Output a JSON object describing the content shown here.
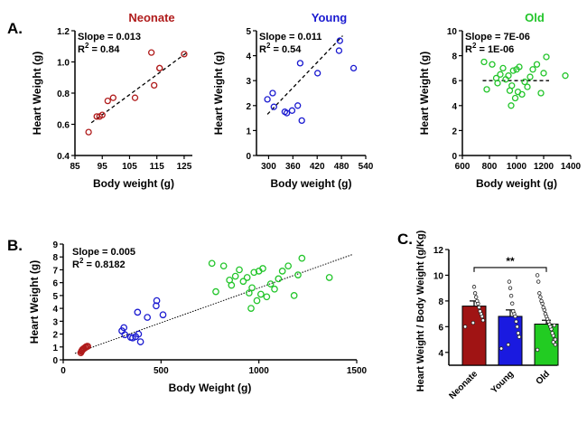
{
  "figure": {
    "panel_labels": [
      "A.",
      "B.",
      "C."
    ]
  },
  "chart_data": [
    {
      "id": "neonate",
      "type": "scatter",
      "title": "Neonate",
      "title_color": "#b01c1c",
      "xlabel": "Body weight (g)",
      "ylabel": "Heart Weight (g)",
      "xlim": [
        85,
        128
      ],
      "ylim": [
        0.4,
        1.2
      ],
      "xticks": [
        85,
        95,
        105,
        115,
        125
      ],
      "yticks": [
        0.4,
        0.6,
        0.8,
        1.0,
        1.2
      ],
      "ytick_decimals": 1,
      "point_color": "#b01c1c",
      "annotations": [
        "Slope = 0.013",
        "R",
        "2",
        " = 0.84"
      ],
      "fit": {
        "x": [
          91,
          126
        ],
        "y": [
          0.61,
          1.06
        ]
      },
      "x": [
        90,
        93,
        94,
        95,
        97,
        99,
        107,
        113,
        114,
        116,
        116,
        125
      ],
      "y": [
        0.55,
        0.65,
        0.65,
        0.66,
        0.75,
        0.77,
        0.77,
        1.06,
        0.85,
        0.96,
        0.96,
        1.05
      ]
    },
    {
      "id": "young",
      "type": "scatter",
      "title": "Young",
      "title_color": "#1a1ad0",
      "xlabel": "Body weight (g)",
      "ylabel": "Heart Weight (g)",
      "xlim": [
        270,
        540
      ],
      "ylim": [
        0,
        5
      ],
      "xticks": [
        300,
        360,
        420,
        480,
        540
      ],
      "yticks": [
        0,
        1,
        2,
        3,
        4,
        5
      ],
      "ytick_decimals": 0,
      "point_color": "#1a1ad0",
      "annotations": [
        "Slope = 0.011",
        "R",
        "2",
        " = 0.54"
      ],
      "fit": {
        "x": [
          297,
          483
        ],
        "y": [
          1.65,
          4.8
        ]
      },
      "x": [
        297,
        310,
        313,
        340,
        345,
        358,
        372,
        378,
        382,
        421,
        474,
        476,
        510
      ],
      "y": [
        2.25,
        2.5,
        1.95,
        1.75,
        1.7,
        1.8,
        2.0,
        3.7,
        1.4,
        3.3,
        4.2,
        4.6,
        3.5
      ]
    },
    {
      "id": "old",
      "type": "scatter",
      "title": "Old",
      "title_color": "#22c52a",
      "xlabel": "Body weight (g)",
      "ylabel": "Heart Weight (g)",
      "xlim": [
        600,
        1400
      ],
      "ylim": [
        0,
        10
      ],
      "xticks": [
        600,
        800,
        1000,
        1200,
        1400
      ],
      "yticks": [
        0,
        2,
        4,
        6,
        8,
        10
      ],
      "ytick_decimals": 0,
      "point_color": "#22c52a",
      "annotations": [
        "Slope = 7E-06",
        "R",
        "2",
        " = 1E-06"
      ],
      "fit": {
        "x": [
          750,
          1240
        ],
        "y": [
          6.0,
          6.0
        ]
      },
      "x": [
        760,
        780,
        820,
        850,
        860,
        880,
        900,
        920,
        940,
        950,
        960,
        965,
        975,
        990,
        1000,
        1010,
        1020,
        1040,
        1060,
        1080,
        1100,
        1120,
        1150,
        1180,
        1200,
        1220,
        1360
      ],
      "y": [
        7.5,
        5.3,
        7.3,
        6.2,
        5.8,
        6.5,
        7.0,
        6.1,
        6.4,
        5.2,
        4.0,
        5.6,
        6.8,
        4.6,
        6.9,
        5.1,
        7.1,
        4.9,
        5.9,
        5.5,
        6.3,
        6.9,
        7.3,
        5.0,
        6.6,
        7.9,
        6.4
      ]
    },
    {
      "id": "combined",
      "type": "scatter",
      "title": "",
      "xlabel": "Body Weight (g)",
      "ylabel": "Heart Weight (g)",
      "xlim": [
        0,
        1500
      ],
      "ylim": [
        0,
        9
      ],
      "xticks": [
        0,
        500,
        1000,
        1500
      ],
      "yticks": [
        0,
        1,
        2,
        3,
        4,
        5,
        6,
        7,
        8,
        9
      ],
      "ytick_decimals": 0,
      "annotations": [
        "Slope = 0.005",
        "R",
        "2",
        " = 0.8182"
      ],
      "fit": {
        "x": [
          60,
          1480
        ],
        "y": [
          0.5,
          8.2
        ]
      },
      "series": [
        {
          "color": "#b01c1c",
          "x": [
            90,
            93,
            95,
            97,
            99,
            104,
            107,
            113,
            116,
            122,
            125
          ],
          "y": [
            0.55,
            0.65,
            0.7,
            0.75,
            0.8,
            0.85,
            0.9,
            0.95,
            1.0,
            1.05,
            1.05
          ]
        },
        {
          "color": "#1a1ad0",
          "x": [
            300,
            310,
            315,
            345,
            355,
            370,
            380,
            395,
            430,
            475,
            478,
            510
          ],
          "y": [
            2.25,
            2.5,
            1.95,
            1.75,
            1.7,
            1.8,
            3.7,
            1.4,
            3.3,
            4.2,
            4.6,
            3.5
          ],
          "extra_x": [
            385
          ],
          "extra_y": [
            2.0
          ]
        },
        {
          "color": "#22c52a",
          "x": [
            760,
            780,
            820,
            850,
            860,
            880,
            900,
            920,
            940,
            950,
            960,
            965,
            975,
            990,
            1000,
            1010,
            1020,
            1040,
            1060,
            1080,
            1100,
            1120,
            1150,
            1180,
            1200,
            1220,
            1360
          ],
          "y": [
            7.5,
            5.3,
            7.3,
            6.2,
            5.8,
            6.5,
            7.0,
            6.1,
            6.4,
            5.2,
            4.0,
            5.6,
            6.8,
            4.6,
            6.9,
            5.1,
            7.1,
            4.9,
            5.9,
            5.5,
            6.3,
            6.9,
            7.3,
            5.0,
            6.6,
            7.9,
            6.4
          ]
        }
      ]
    },
    {
      "id": "ratio",
      "type": "bar",
      "title": "",
      "categories": [
        "Neonate",
        "Young",
        "Old"
      ],
      "values": [
        7.6,
        6.8,
        6.2
      ],
      "errors": [
        0.4,
        0.5,
        0.3
      ],
      "colors": [
        "#a01414",
        "#1a1ae0",
        "#22cc22"
      ],
      "xlabel": "",
      "ylabel": "Heart Weight / Body Weight (g/Kg)",
      "ylim": [
        3,
        12
      ],
      "yticks": [
        4,
        6,
        8,
        10,
        12
      ],
      "significance": "**",
      "points": [
        [
          6.0,
          6.5,
          6.8,
          7.0,
          7.2,
          7.5,
          7.8,
          8.0,
          8.3,
          8.6,
          9.1,
          6.3
        ],
        [
          4.3,
          5.2,
          5.5,
          6.0,
          6.4,
          6.8,
          7.0,
          7.2,
          7.8,
          8.4,
          9.0,
          9.5,
          4.6
        ],
        [
          4.2,
          4.6,
          5.0,
          5.3,
          5.5,
          5.8,
          6.0,
          6.2,
          6.4,
          6.6,
          6.8,
          7.0,
          7.3,
          7.5,
          7.8,
          8.0,
          8.3,
          8.6,
          9.5,
          10.0,
          5.0,
          6.1,
          4.8
        ]
      ]
    }
  ]
}
